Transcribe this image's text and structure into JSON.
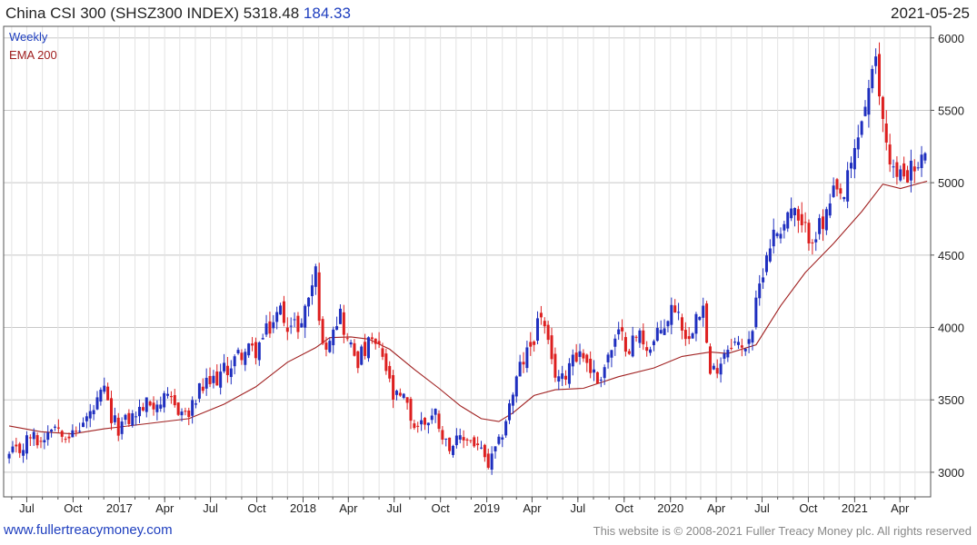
{
  "header": {
    "title": "China CSI 300 (SHSZ300 INDEX)",
    "last_price": "5318.48",
    "change": "184.33",
    "date": "2021-05-25"
  },
  "legend": {
    "frequency": "Weekly",
    "ema": "EMA 200"
  },
  "footer": {
    "site": "www.fullertreacymoney.com",
    "copyright": "This website is © 2008-2021 Fuller Treacy Money plc. All rights reserved"
  },
  "colors": {
    "up_candle": "#1f2fbf",
    "down_candle": "#dd1f1f",
    "ema_line": "#a02020",
    "grid": "#d9d9d9",
    "frame": "#555555",
    "legend_weekly": "#1f3fbf",
    "legend_ema": "#a02020"
  },
  "chart_data": {
    "type": "candlestick",
    "title": "China CSI 300 (SHSZ300 INDEX)",
    "frequency": "Weekly",
    "y_axis_side": "right",
    "ylim": [
      2830,
      6080
    ],
    "y_ticks": [
      3000,
      3500,
      4000,
      4500,
      5000,
      5500,
      6000
    ],
    "x_ticks": [
      {
        "label": "Jul",
        "date": "2016-07-01"
      },
      {
        "label": "Oct",
        "date": "2016-10-01"
      },
      {
        "label": "2017",
        "date": "2017-01-01"
      },
      {
        "label": "Apr",
        "date": "2017-04-01"
      },
      {
        "label": "Jul",
        "date": "2017-07-01"
      },
      {
        "label": "Oct",
        "date": "2017-10-01"
      },
      {
        "label": "2018",
        "date": "2018-01-01"
      },
      {
        "label": "Apr",
        "date": "2018-04-01"
      },
      {
        "label": "Jul",
        "date": "2018-07-01"
      },
      {
        "label": "Oct",
        "date": "2018-10-01"
      },
      {
        "label": "2019",
        "date": "2019-01-01"
      },
      {
        "label": "Apr",
        "date": "2019-04-01"
      },
      {
        "label": "Jul",
        "date": "2019-07-01"
      },
      {
        "label": "Oct",
        "date": "2019-10-01"
      },
      {
        "label": "2020",
        "date": "2020-01-01"
      },
      {
        "label": "Apr",
        "date": "2020-04-01"
      },
      {
        "label": "Jul",
        "date": "2020-07-01"
      },
      {
        "label": "Oct",
        "date": "2020-10-01"
      },
      {
        "label": "2021",
        "date": "2021-01-01"
      },
      {
        "label": "Apr",
        "date": "2021-04-01"
      }
    ],
    "close_anchors": [
      [
        "2016-05-27",
        3110
      ],
      [
        "2016-06-17",
        3150
      ],
      [
        "2016-07-08",
        3250
      ],
      [
        "2016-07-29",
        3210
      ],
      [
        "2016-08-19",
        3340
      ],
      [
        "2016-09-09",
        3300
      ],
      [
        "2016-09-30",
        3250
      ],
      [
        "2016-10-21",
        3340
      ],
      [
        "2016-11-11",
        3430
      ],
      [
        "2016-12-02",
        3560
      ],
      [
        "2016-12-16",
        3360
      ],
      [
        "2016-12-30",
        3310
      ],
      [
        "2017-01-27",
        3385
      ],
      [
        "2017-02-24",
        3470
      ],
      [
        "2017-03-24",
        3490
      ],
      [
        "2017-04-14",
        3480
      ],
      [
        "2017-05-05",
        3420
      ],
      [
        "2017-05-19",
        3390
      ],
      [
        "2017-06-09",
        3560
      ],
      [
        "2017-07-07",
        3630
      ],
      [
        "2017-08-04",
        3720
      ],
      [
        "2017-09-01",
        3830
      ],
      [
        "2017-09-29",
        3840
      ],
      [
        "2017-10-27",
        4000
      ],
      [
        "2017-11-17",
        4120
      ],
      [
        "2017-12-08",
        4000
      ],
      [
        "2017-12-29",
        4030
      ],
      [
        "2018-01-12",
        4220
      ],
      [
        "2018-01-26",
        4380
      ],
      [
        "2018-02-09",
        3840
      ],
      [
        "2018-03-02",
        4030
      ],
      [
        "2018-03-16",
        4100
      ],
      [
        "2018-03-30",
        3900
      ],
      [
        "2018-04-20",
        3780
      ],
      [
        "2018-05-18",
        3900
      ],
      [
        "2018-06-08",
        3800
      ],
      [
        "2018-06-29",
        3510
      ],
      [
        "2018-07-20",
        3500
      ],
      [
        "2018-08-10",
        3320
      ],
      [
        "2018-08-31",
        3350
      ],
      [
        "2018-09-21",
        3410
      ],
      [
        "2018-10-12",
        3200
      ],
      [
        "2018-11-02",
        3200
      ],
      [
        "2018-11-23",
        3240
      ],
      [
        "2018-12-14",
        3180
      ],
      [
        "2019-01-04",
        3040
      ],
      [
        "2019-01-25",
        3190
      ],
      [
        "2019-02-15",
        3460
      ],
      [
        "2019-03-08",
        3720
      ],
      [
        "2019-03-29",
        3870
      ],
      [
        "2019-04-19",
        4100
      ],
      [
        "2019-05-10",
        3730
      ],
      [
        "2019-05-31",
        3630
      ],
      [
        "2019-06-21",
        3830
      ],
      [
        "2019-07-12",
        3810
      ],
      [
        "2019-08-09",
        3630
      ],
      [
        "2019-08-30",
        3800
      ],
      [
        "2019-09-20",
        3940
      ],
      [
        "2019-10-11",
        3880
      ],
      [
        "2019-11-01",
        3950
      ],
      [
        "2019-11-22",
        3850
      ],
      [
        "2019-12-13",
        3980
      ],
      [
        "2020-01-10",
        4160
      ],
      [
        "2020-02-07",
        3900
      ],
      [
        "2020-02-21",
        4150
      ],
      [
        "2020-03-06",
        4140
      ],
      [
        "2020-03-20",
        3650
      ],
      [
        "2020-04-10",
        3790
      ],
      [
        "2020-05-01",
        3920
      ],
      [
        "2020-05-22",
        3840
      ],
      [
        "2020-06-12",
        4000
      ],
      [
        "2020-07-03",
        4420
      ],
      [
        "2020-07-17",
        4600
      ],
      [
        "2020-08-07",
        4700
      ],
      [
        "2020-08-28",
        4820
      ],
      [
        "2020-09-18",
        4660
      ],
      [
        "2020-10-09",
        4650
      ],
      [
        "2020-10-30",
        4700
      ],
      [
        "2020-11-20",
        4900
      ],
      [
        "2020-12-11",
        4900
      ],
      [
        "2021-01-01",
        5210
      ],
      [
        "2021-01-22",
        5550
      ],
      [
        "2021-02-12",
        5800
      ],
      [
        "2021-02-26",
        5430
      ],
      [
        "2021-03-12",
        5180
      ],
      [
        "2021-03-26",
        5020
      ],
      [
        "2021-04-16",
        5090
      ],
      [
        "2021-05-07",
        5090
      ],
      [
        "2021-05-14",
        5130
      ],
      [
        "2021-05-25",
        5318.48
      ]
    ],
    "ema200": {
      "name": "EMA 200",
      "points": [
        [
          "2016-05-27",
          3320
        ],
        [
          "2016-07-29",
          3280
        ],
        [
          "2016-09-30",
          3265
        ],
        [
          "2016-12-02",
          3300
        ],
        [
          "2017-02-24",
          3335
        ],
        [
          "2017-05-19",
          3370
        ],
        [
          "2017-07-28",
          3470
        ],
        [
          "2017-09-29",
          3590
        ],
        [
          "2017-12-01",
          3760
        ],
        [
          "2018-01-26",
          3860
        ],
        [
          "2018-02-23",
          3930
        ],
        [
          "2018-04-06",
          3935
        ],
        [
          "2018-05-11",
          3920
        ],
        [
          "2018-06-22",
          3850
        ],
        [
          "2018-08-10",
          3710
        ],
        [
          "2018-09-28",
          3580
        ],
        [
          "2018-11-09",
          3460
        ],
        [
          "2018-12-21",
          3370
        ],
        [
          "2019-01-25",
          3350
        ],
        [
          "2019-02-22",
          3410
        ],
        [
          "2019-04-05",
          3530
        ],
        [
          "2019-05-17",
          3570
        ],
        [
          "2019-07-12",
          3580
        ],
        [
          "2019-09-20",
          3660
        ],
        [
          "2019-11-29",
          3720
        ],
        [
          "2020-01-24",
          3800
        ],
        [
          "2020-03-20",
          3830
        ],
        [
          "2020-04-24",
          3820
        ],
        [
          "2020-06-19",
          3880
        ],
        [
          "2020-08-07",
          4150
        ],
        [
          "2020-09-25",
          4380
        ],
        [
          "2020-11-20",
          4580
        ],
        [
          "2021-01-15",
          4800
        ],
        [
          "2021-02-26",
          4990
        ],
        [
          "2021-04-02",
          4960
        ],
        [
          "2021-05-25",
          5010
        ]
      ]
    },
    "series_colors": {
      "up": "#1f2fbf",
      "down": "#dd1f1f",
      "ema": "#a02020"
    }
  }
}
